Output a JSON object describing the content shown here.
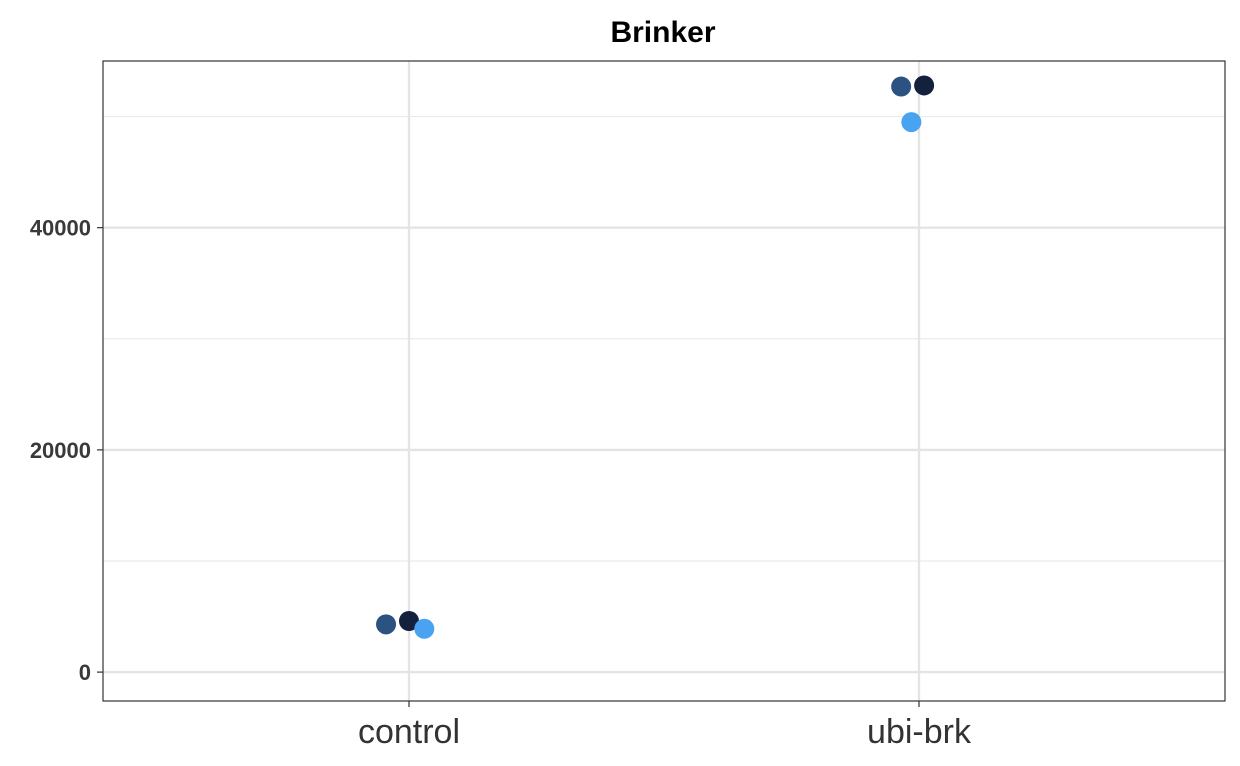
{
  "chart_data": {
    "type": "scatter",
    "title": "Brinker",
    "xlabel": "",
    "ylabel": "",
    "categories": [
      "control",
      "ubi-brk"
    ],
    "ylim": [
      -2600,
      55000
    ],
    "yticks": [
      0,
      20000,
      40000
    ],
    "yticks_minor": [
      10000,
      30000,
      50000
    ],
    "yticks_labels": [
      "0",
      "20000",
      "40000"
    ],
    "grid": true,
    "legend": "none",
    "points": [
      {
        "category": "control",
        "jitter": -0.045,
        "value": 4300,
        "color": "#2c5282"
      },
      {
        "category": "control",
        "jitter": 0.0,
        "value": 4600,
        "color": "#14213d"
      },
      {
        "category": "control",
        "jitter": 0.03,
        "value": 3900,
        "color": "#4aa3f0"
      },
      {
        "category": "ubi-brk",
        "jitter": -0.035,
        "value": 52700,
        "color": "#2c5282"
      },
      {
        "category": "ubi-brk",
        "jitter": 0.01,
        "value": 52800,
        "color": "#14213d"
      },
      {
        "category": "ubi-brk",
        "jitter": -0.015,
        "value": 49500,
        "color": "#4aa3f0"
      }
    ]
  }
}
